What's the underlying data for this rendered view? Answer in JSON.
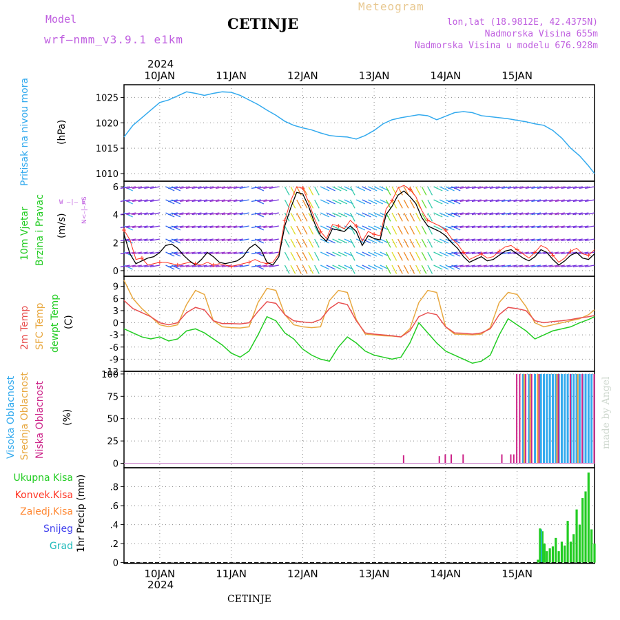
{
  "header": {
    "model_label": "Model",
    "model_name": "wrf–nmm_v3.9.1  e1km",
    "station": "CETINJE",
    "meteogram": "Meteogram",
    "lonlat": "lon,lat (18.9812E, 42.4375N)",
    "elevation": "Nadmorska Visina 655m",
    "model_elevation": "Nadmorska Visina u modelu 676.928m"
  },
  "footer": {
    "station": "CETINJE",
    "credit": "made by Angel"
  },
  "colors": {
    "pressure": "#33aaee",
    "wind_speed": "#000000",
    "gust": "#ff3322",
    "temp2m": "#e85050",
    "sfc_temp": "#e8a840",
    "dewpoint": "#22cc22",
    "high_cloud": "#33aaee",
    "mid_cloud": "#e8a840",
    "low_cloud": "#cc2288",
    "total_precip": "#22cc22",
    "conv_precip": "#ff3322",
    "frozen": "#ff8833",
    "snow": "#4444ee",
    "graupel": "#22bbbb"
  },
  "chart_data": [
    {
      "type": "line",
      "panel": "pressure",
      "ylabel_name": "Pritisak na nivou mora",
      "yunit": "(hPa)",
      "ylim": [
        1008.5,
        1027.5
      ],
      "yticks": [
        1010,
        1015,
        1020,
        1025
      ],
      "x_hours": [
        0,
        3,
        6,
        9,
        12,
        15,
        18,
        21,
        24,
        27,
        30,
        33,
        36,
        39,
        42,
        45,
        48,
        51,
        54,
        57,
        60,
        63,
        66,
        69,
        72,
        75,
        78,
        81,
        84,
        87,
        90,
        93,
        96,
        99,
        102,
        105,
        108,
        111,
        114,
        117,
        120,
        123,
        126,
        129,
        132,
        135,
        138,
        141,
        144,
        147,
        150,
        153,
        156,
        158
      ],
      "values": [
        1017.2,
        1019.5,
        1021,
        1022.5,
        1024,
        1024.5,
        1025.3,
        1026.1,
        1025.8,
        1025.4,
        1025.8,
        1026.1,
        1026,
        1025.4,
        1024.5,
        1023.6,
        1022.5,
        1021.5,
        1020.3,
        1019.5,
        1019,
        1018.6,
        1018,
        1017.5,
        1017.3,
        1017.2,
        1016.8,
        1017.5,
        1018.5,
        1019.8,
        1020.6,
        1021,
        1021.3,
        1021.6,
        1021.4,
        1020.6,
        1021.3,
        1022,
        1022.2,
        1022,
        1021.4,
        1021.2,
        1021,
        1020.8,
        1020.5,
        1020.2,
        1019.8,
        1019.5,
        1018.5,
        1017,
        1015,
        1013.5,
        1011.5,
        1010
      ]
    },
    {
      "type": "line",
      "panel": "wind",
      "ylabel_name": "10m Vjetar Brzina i Pravac",
      "yunit": "(m/s)",
      "compass": "N <–|–> S, W –|– E",
      "ylim": [
        -0.4,
        6.4
      ],
      "yticks": [
        0,
        2,
        4,
        6
      ],
      "x_hours": [
        0,
        2,
        4,
        6,
        8,
        10,
        12,
        14,
        16,
        18,
        20,
        22,
        24,
        26,
        28,
        30,
        32,
        34,
        36,
        38,
        40,
        42,
        44,
        46,
        48,
        50,
        52,
        54,
        56,
        58,
        60,
        62,
        64,
        66,
        68,
        70,
        72,
        74,
        76,
        78,
        80,
        82,
        84,
        86,
        88,
        90,
        92,
        94,
        96,
        98,
        100,
        102,
        104,
        106,
        108,
        110,
        112,
        114,
        116,
        118,
        120,
        122,
        124,
        126,
        128,
        130,
        132,
        134,
        136,
        138,
        140,
        142,
        144,
        146,
        148,
        150,
        152,
        154,
        156,
        158
      ],
      "series": [
        {
          "name": "speed",
          "values": [
            2.6,
            1.2,
            0.5,
            0.7,
            0.9,
            1.0,
            1.3,
            1.8,
            1.9,
            1.6,
            1.1,
            0.7,
            0.4,
            0.8,
            1.3,
            1.0,
            0.6,
            0.5,
            0.6,
            0.7,
            1.0,
            1.6,
            1.9,
            1.5,
            0.6,
            0.4,
            1.0,
            3.2,
            4.5,
            5.6,
            5.5,
            4.6,
            3.4,
            2.5,
            2.1,
            3.0,
            2.9,
            2.8,
            3.2,
            2.8,
            1.8,
            2.5,
            2.3,
            2.2,
            4.0,
            4.6,
            5.4,
            5.7,
            5.3,
            4.8,
            3.8,
            3.2,
            3.0,
            2.8,
            2.5,
            2.0,
            1.6,
            1.0,
            0.6,
            0.8,
            1.0,
            0.7,
            0.8,
            1.1,
            1.4,
            1.5,
            1.2,
            0.9,
            0.7,
            1.0,
            1.5,
            1.3,
            0.8,
            0.4,
            0.7,
            1.1,
            1.3,
            0.9,
            0.8,
            1.2
          ]
        },
        {
          "name": "gust",
          "values": [
            2.9,
            2.2,
            0.8,
            0.9,
            0.4,
            0.5,
            0.6,
            0.6,
            0.5,
            0.4,
            0.5,
            0.6,
            0.5,
            0.4,
            0.6,
            0.4,
            0.5,
            0.4,
            0.3,
            0.4,
            0.5,
            0.6,
            0.8,
            0.6,
            0.5,
            0.6,
            1.2,
            3.6,
            5.0,
            6.0,
            5.9,
            4.9,
            3.7,
            2.8,
            2.3,
            3.3,
            3.2,
            3.0,
            3.6,
            3.2,
            2.1,
            2.8,
            2.6,
            2.5,
            4.4,
            5.0,
            5.9,
            6.1,
            5.8,
            5.3,
            4.3,
            3.6,
            3.4,
            3.2,
            2.9,
            2.3,
            1.9,
            1.3,
            0.8,
            1.0,
            1.2,
            0.9,
            1.0,
            1.4,
            1.7,
            1.8,
            1.5,
            1.2,
            0.9,
            1.3,
            1.8,
            1.6,
            1.1,
            0.6,
            0.9,
            1.4,
            1.6,
            1.2,
            1.1,
            1.5
          ]
        }
      ]
    },
    {
      "type": "line",
      "panel": "temperature",
      "yunit": "(C)",
      "ylim": [
        -12,
        11.5
      ],
      "yticks": [
        -12,
        -9,
        -6,
        -3,
        0,
        3,
        6,
        9
      ],
      "x_hours": [
        0,
        3,
        6,
        9,
        12,
        15,
        18,
        21,
        24,
        27,
        30,
        33,
        36,
        39,
        42,
        45,
        48,
        51,
        54,
        57,
        60,
        63,
        66,
        69,
        72,
        75,
        78,
        81,
        84,
        87,
        90,
        93,
        96,
        99,
        102,
        105,
        108,
        111,
        114,
        117,
        120,
        123,
        126,
        129,
        132,
        135,
        138,
        141,
        144,
        147,
        150,
        153,
        156,
        158
      ],
      "series": [
        {
          "name": "2m Temp",
          "values": [
            5.5,
            3.5,
            2.5,
            1.5,
            0,
            -0.5,
            0,
            2.5,
            3.8,
            3.2,
            0.5,
            -0.2,
            -0.2,
            -0.3,
            0,
            2.8,
            5.2,
            4.8,
            2.0,
            0.5,
            0.2,
            0,
            0.8,
            3.5,
            5.0,
            4.5,
            0.5,
            -2.5,
            -2.8,
            -3.0,
            -3.2,
            -3.5,
            -2.0,
            1.5,
            2.5,
            2.0,
            -1.0,
            -2.5,
            -2.6,
            -2.8,
            -2.5,
            -1.5,
            2.0,
            3.8,
            3.5,
            3.0,
            0.5,
            0,
            0.3,
            0.5,
            0.8,
            1.2,
            1.5,
            1.8
          ]
        },
        {
          "name": "SFC Temp",
          "values": [
            10.5,
            6,
            3.5,
            1.5,
            -0.5,
            -1,
            -0.5,
            4.5,
            8.0,
            7.0,
            0.5,
            -1.0,
            -1.2,
            -1.3,
            -1.0,
            5.0,
            8.5,
            8.0,
            2.0,
            -0.5,
            -1.0,
            -1.2,
            -1.0,
            5.5,
            8.0,
            7.5,
            0.8,
            -2.8,
            -3.0,
            -3.2,
            -3.3,
            -3.5,
            -1.5,
            5.0,
            8.0,
            7.5,
            -1.0,
            -2.8,
            -2.9,
            -3.0,
            -2.8,
            -1.2,
            5.0,
            7.5,
            7.0,
            4.0,
            0,
            -1.0,
            -0.5,
            0,
            0.5,
            1.0,
            2.0,
            3.2
          ]
        },
        {
          "name": "dewpt Temp",
          "values": [
            -1.5,
            -2.5,
            -3.5,
            -4.0,
            -3.5,
            -4.5,
            -4.0,
            -2.0,
            -1.5,
            -2.5,
            -4.0,
            -5.5,
            -7.5,
            -8.5,
            -7.0,
            -3.0,
            1.5,
            0.5,
            -2.5,
            -4.0,
            -6.5,
            -8.0,
            -9.0,
            -9.5,
            -6.0,
            -3.5,
            -5.0,
            -7.0,
            -8.0,
            -8.5,
            -9.0,
            -8.5,
            -5.0,
            0.0,
            -2.5,
            -5.0,
            -7.0,
            -8.0,
            -9.0,
            -10.0,
            -9.5,
            -8.0,
            -3.0,
            1.0,
            -0.5,
            -2.0,
            -4.0,
            -3.0,
            -2.0,
            -1.5,
            -1.0,
            0.0,
            0.8,
            1.5
          ]
        }
      ]
    },
    {
      "type": "bar",
      "panel": "clouds",
      "yunit": "(%)",
      "ylim": [
        -5,
        103
      ],
      "yticks": [
        0,
        25,
        50,
        75,
        100
      ],
      "series": [
        {
          "name": "Visoka Oblacnost",
          "x_hours": [
            134,
            136,
            138,
            140,
            141,
            142,
            143,
            144,
            145,
            146,
            147,
            148,
            149,
            150,
            151,
            152,
            153,
            154,
            155,
            156,
            157
          ],
          "values": [
            100,
            100,
            100,
            100,
            100,
            100,
            100,
            100,
            100,
            100,
            100,
            100,
            100,
            100,
            100,
            100,
            100,
            100,
            100,
            100,
            100
          ]
        },
        {
          "name": "Srednja Oblacnost",
          "x_hours": [
            134.5,
            136.5,
            139,
            145.5,
            152.5
          ],
          "values": [
            100,
            100,
            100,
            100,
            100
          ]
        },
        {
          "name": "Niska Oblacnost",
          "x_hours": [
            94,
            106,
            108,
            110,
            114,
            127,
            130,
            131,
            132,
            133,
            135,
            137,
            139.5,
            146,
            150,
            154,
            158
          ],
          "values": [
            9,
            8,
            10,
            10,
            10,
            10,
            10,
            10,
            100,
            100,
            100,
            100,
            100,
            100,
            100,
            100,
            100
          ]
        }
      ]
    },
    {
      "type": "bar",
      "panel": "precipitation",
      "yunit": "1hr Precip (mm)",
      "ylim": [
        -0.01,
        1.0
      ],
      "yticks": [
        0,
        0.2,
        0.4,
        0.6,
        0.8
      ],
      "legend": [
        "Ukupna Kisa",
        "Konvek.Kisa",
        "Zaledj.Kisa",
        "Snijeg",
        "Grad"
      ],
      "series": [
        {
          "name": "Ukupna Kisa",
          "x_hours": [
            139,
            139.7,
            140.5,
            141.2,
            142,
            143,
            144,
            145,
            146,
            147,
            148,
            149,
            150,
            151,
            152,
            153,
            154,
            155,
            156,
            157,
            158
          ],
          "values": [
            0.03,
            0.36,
            0.33,
            0.2,
            0.12,
            0.15,
            0.17,
            0.26,
            0.12,
            0.22,
            0.18,
            0.44,
            0.22,
            0.3,
            0.56,
            0.4,
            0.68,
            0.75,
            0.95,
            0.35,
            0.2
          ]
        },
        {
          "name": "Grad",
          "x_hours": [
            140.2
          ],
          "values": [
            0.35
          ]
        }
      ]
    }
  ],
  "x_axis": {
    "start_day_hour": 0,
    "hours_per_day": 24,
    "days": [
      {
        "label": "10JAN",
        "hour": 12
      },
      {
        "label": "11JAN",
        "hour": 36
      },
      {
        "label": "12JAN",
        "hour": 60
      },
      {
        "label": "13JAN",
        "hour": 84
      },
      {
        "label": "14JAN",
        "hour": 108
      },
      {
        "label": "15JAN",
        "hour": 132
      }
    ],
    "year": "2024"
  },
  "labels": {
    "pressure": "Pritisak na nivou mora",
    "pressure_unit": "(hPa)",
    "wind1": "10m Vjetar",
    "wind2": "Brzina i Pravac",
    "wind_unit": "(m/s)",
    "compass_ns": "N<–|–>S",
    "compass_we": "W  –|–  E",
    "t2m": "2m Temp",
    "tsfc": "SFC Temp",
    "tdew": "dewpt Temp",
    "t_unit": "(C)",
    "c_high": "Visoka Oblacnost",
    "c_mid": "Srednja Oblacnost",
    "c_low": "Niska Oblacnost",
    "c_unit": "(%)",
    "p_total": "Ukupna Kisa",
    "p_conv": "Konvek.Kisa",
    "p_frozen": "Zaledj.Kisa",
    "p_snow": "Snijeg",
    "p_grad": "Grad",
    "p_unit": "1hr Precip (mm)"
  }
}
